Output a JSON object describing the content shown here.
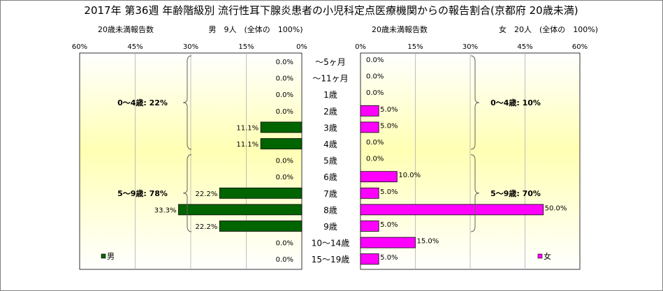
{
  "title": "2017年 第36週 年齢階級別 流行性耳下腺炎患者の小児科定点医療機関からの報告割合(京都府 20歳未満)",
  "left_header": {
    "ylabel": "20歳未満報告数",
    "summary": "男　9人　(全体の　100%)"
  },
  "right_header": {
    "ylabel": "20歳未満報告数",
    "summary": "女　20人　(全体の　100%)"
  },
  "colors": {
    "male_bar": "#006400",
    "female_bar": "#ff00ff",
    "plot_top": "#ffffff",
    "plot_mid": "#ffffb4",
    "grid": "#b0b0b0"
  },
  "chart_data": {
    "type": "bar",
    "orientation": "horizontal-butterfly",
    "title": "2017年 第36週 年齢階級別 流行性耳下腺炎患者の小児科定点医療機関からの報告割合(京都府 20歳未満)",
    "categories": [
      "～5ヶ月",
      "～11ヶ月",
      "1歳",
      "2歳",
      "3歳",
      "4歳",
      "5歳",
      "6歳",
      "7歳",
      "8歳",
      "9歳",
      "10～14歳",
      "15～19歳"
    ],
    "xlim": [
      0,
      60
    ],
    "ticks": [
      "0%",
      "15%",
      "30%",
      "45%",
      "60%"
    ],
    "left_ticks": [
      "60%",
      "45%",
      "30%",
      "15%",
      "0%"
    ],
    "grid": true,
    "series": [
      {
        "name": "男",
        "side": "left",
        "values": [
          0.0,
          0.0,
          0.0,
          0.0,
          11.1,
          11.1,
          0.0,
          0.0,
          22.2,
          33.3,
          22.2,
          0.0,
          0.0
        ],
        "labels": [
          "0.0%",
          "0.0%",
          "0.0%",
          "0.0%",
          "11.1%",
          "11.1%",
          "0.0%",
          "0.0%",
          "22.2%",
          "33.3%",
          "22.2%",
          "0.0%",
          "0.0%"
        ],
        "groups": [
          {
            "label": "0～4歳: 22%",
            "from": 0,
            "to": 5
          },
          {
            "label": "5～9歳: 78%",
            "from": 6,
            "to": 10
          }
        ]
      },
      {
        "name": "女",
        "side": "right",
        "values": [
          0.0,
          0.0,
          0.0,
          5.0,
          5.0,
          0.0,
          0.0,
          10.0,
          5.0,
          50.0,
          5.0,
          15.0,
          5.0
        ],
        "labels": [
          "0.0%",
          "0.0%",
          "0.0%",
          "5.0%",
          "5.0%",
          "0.0%",
          "0.0%",
          "10.0%",
          "5.0%",
          "50.0%",
          "5.0%",
          "15.0%",
          "5.0%"
        ],
        "groups": [
          {
            "label": "0～4歳: 10%",
            "from": 0,
            "to": 5
          },
          {
            "label": "5～9歳: 70%",
            "from": 6,
            "to": 10
          }
        ]
      }
    ],
    "legend": [
      "男",
      "女"
    ],
    "legend_position": "bottom-inside"
  }
}
